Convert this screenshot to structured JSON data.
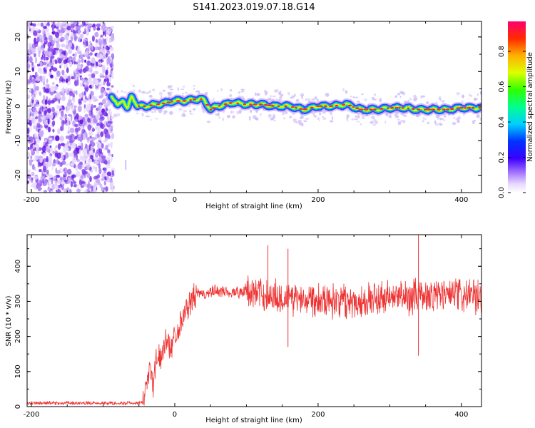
{
  "title": "S141.2023.019.07.18.G14",
  "colors": {
    "snr_line": "#ee3333",
    "spectrogram_noise": "#7a1ee6",
    "spectrogram_peak": "#ff2a2a"
  },
  "chart_data": [
    {
      "type": "heatmap",
      "xlabel": "Height of straight line (km)",
      "ylabel": "Frequency (Hz)",
      "xlim": [
        -206,
        428
      ],
      "ylim": [
        -25,
        24.5
      ],
      "xticks": [
        "-200",
        "0",
        "200",
        "400"
      ],
      "yticks": [
        "20",
        "10",
        "0",
        "-10",
        "-20"
      ],
      "colorbar": {
        "label": "Normalized spectral amplitude",
        "range": [
          0,
          0.97
        ],
        "ticks": [
          "0.0",
          "0.2",
          "0.4",
          "0.6",
          "0.8"
        ],
        "colormap": "rainbow (white-violet-blue-cyan-green-yellow-red-magenta)"
      },
      "noise_region": {
        "x_from": -206,
        "x_to": -86,
        "description": "broadband noise"
      },
      "ridge": {
        "x": [
          -88,
          -80,
          -72,
          -66,
          -60,
          -52,
          -40,
          -25,
          -10,
          0,
          15,
          30,
          40,
          50,
          60,
          80,
          100,
          120,
          140,
          160,
          180,
          200,
          220,
          240,
          260,
          280,
          300,
          320,
          340,
          360,
          380,
          400,
          428
        ],
        "freq": [
          3,
          0,
          2,
          -1,
          3,
          0,
          0,
          0.5,
          1,
          1.5,
          1.5,
          2,
          2,
          -1,
          0,
          1,
          0.5,
          0.5,
          0,
          0,
          -1,
          0,
          0,
          0.5,
          -1,
          -1,
          -0.5,
          -0.5,
          -1,
          -1,
          -1,
          -0.5,
          -0.5
        ],
        "peak_amplitude": 0.95
      }
    },
    {
      "type": "line",
      "xlabel": "Height of straight line (km)",
      "ylabel": "SNR (10 * v/v)",
      "xlim": [
        -206,
        428
      ],
      "ylim": [
        0,
        490
      ],
      "xticks": [
        "-200",
        "0",
        "200",
        "400"
      ],
      "yticks": [
        "0",
        "100",
        "200",
        "300",
        "400"
      ],
      "series": [
        {
          "x": [
            -206,
            -150,
            -100,
            -50,
            -45,
            -40,
            -35,
            -30,
            -25,
            -20,
            -15,
            -10,
            -5,
            0,
            10,
            20,
            30,
            40,
            60,
            80,
            100,
            120,
            150,
            200,
            250,
            300,
            340,
            380,
            428
          ],
          "y": [
            10,
            10,
            10,
            10,
            15,
            60,
            120,
            60,
            150,
            130,
            180,
            190,
            170,
            200,
            250,
            290,
            320,
            320,
            330,
            325,
            330,
            320,
            310,
            310,
            300,
            310,
            315,
            320,
            310
          ],
          "noise_amplitude_after_100km": 60,
          "peaks": [
            {
              "x": 130,
              "y": 460
            },
            {
              "x": 158,
              "y": 450
            },
            {
              "x": 340,
              "y": 490
            },
            {
              "x": 340,
              "y": 145
            },
            {
              "x": 158,
              "y": 170
            }
          ]
        }
      ]
    }
  ]
}
